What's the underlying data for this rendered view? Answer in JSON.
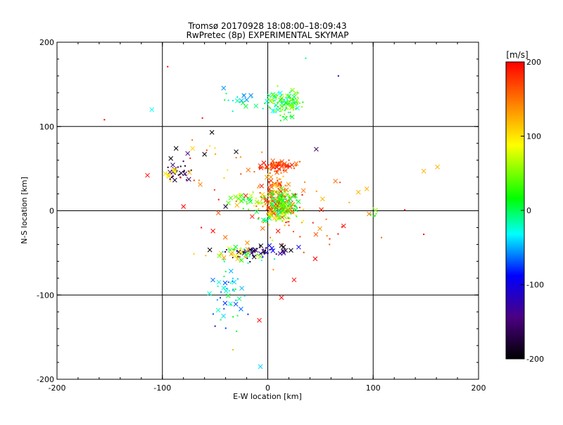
{
  "chart_data": {
    "type": "scatter",
    "title": "Tromsø 20170928 18:08:00–18:09:43",
    "subtitle": "RwPretec (8p) EXPERIMENTAL SKYMAP",
    "xlabel": "E-W location [km]",
    "ylabel": "N-S location [km]",
    "xlim": [
      -200,
      200
    ],
    "ylim": [
      -200,
      200
    ],
    "xticks": [
      -200,
      -100,
      0,
      100,
      200
    ],
    "yticks": [
      -200,
      -100,
      0,
      100,
      200
    ],
    "grid": true,
    "colorbar": {
      "label": "[m/s]",
      "min": -200,
      "max": 200,
      "ticks": [
        -200,
        -100,
        0,
        100,
        200
      ],
      "colors": [
        "#000000",
        "#4b0082",
        "#0000ff",
        "#00ffff",
        "#00ff00",
        "#ffff00",
        "#ff8000",
        "#ff0000"
      ]
    },
    "clusters": [
      {
        "name": "north-top",
        "cx": 15,
        "cy": 128,
        "sx": 9,
        "sy": 8,
        "n": 120,
        "vmin": -40,
        "vmax": 80
      },
      {
        "name": "north-left",
        "cx": -25,
        "cy": 132,
        "sx": 8,
        "sy": 6,
        "n": 18,
        "vmin": -60,
        "vmax": 20
      },
      {
        "name": "upper-red-band",
        "cx": 12,
        "cy": 53,
        "sx": 9,
        "sy": 3,
        "n": 70,
        "vmin": 150,
        "vmax": 200
      },
      {
        "name": "mid-column-red",
        "cx": 5,
        "cy": 22,
        "sx": 6,
        "sy": 12,
        "n": 90,
        "vmin": 100,
        "vmax": 200
      },
      {
        "name": "center-mixed",
        "cx": 10,
        "cy": 5,
        "sx": 10,
        "sy": 10,
        "n": 200,
        "vmin": -20,
        "vmax": 200
      },
      {
        "name": "center-green",
        "cx": 15,
        "cy": 10,
        "sx": 6,
        "sy": 7,
        "n": 60,
        "vmin": -10,
        "vmax": 60
      },
      {
        "name": "lower-left-green",
        "cx": -25,
        "cy": 15,
        "sx": 8,
        "sy": 6,
        "n": 30,
        "vmin": 0,
        "vmax": 120
      },
      {
        "name": "left-black",
        "cx": -85,
        "cy": 45,
        "sx": 6,
        "sy": 6,
        "n": 30,
        "vmin": -200,
        "vmax": -150
      },
      {
        "name": "left-yellow",
        "cx": -90,
        "cy": 44,
        "sx": 4,
        "sy": 4,
        "n": 10,
        "vmin": 80,
        "vmax": 130
      },
      {
        "name": "south-dark",
        "cx": -10,
        "cy": -48,
        "sx": 15,
        "sy": 4,
        "n": 60,
        "vmin": -200,
        "vmax": -90
      },
      {
        "name": "south-mixed",
        "cx": -25,
        "cy": -52,
        "sx": 12,
        "sy": 5,
        "n": 40,
        "vmin": -40,
        "vmax": 140
      },
      {
        "name": "south-cyan-trail",
        "cx": -38,
        "cy": -100,
        "sx": 8,
        "sy": 18,
        "n": 45,
        "vmin": -80,
        "vmax": 20
      },
      {
        "name": "right-small",
        "cx": 101,
        "cy": -5,
        "sx": 1.5,
        "sy": 3,
        "n": 6,
        "vmin": 0,
        "vmax": 60
      },
      {
        "name": "scatter-right",
        "cx": 40,
        "cy": -10,
        "sx": 25,
        "sy": 30,
        "n": 30,
        "vmin": 120,
        "vmax": 200
      },
      {
        "name": "scatter-left",
        "cx": -40,
        "cy": 40,
        "sx": 30,
        "sy": 30,
        "n": 30,
        "vmin": 100,
        "vmax": 200
      }
    ],
    "points": [
      {
        "x": -155,
        "y": 108,
        "v": 200,
        "m": "dot"
      },
      {
        "x": -95,
        "y": 171,
        "v": 200,
        "m": "dot"
      },
      {
        "x": -110,
        "y": 120,
        "v": -30,
        "m": "x"
      },
      {
        "x": -53,
        "y": 93,
        "v": -200,
        "m": "x"
      },
      {
        "x": -62,
        "y": 110,
        "v": 200,
        "m": "dot"
      },
      {
        "x": 148,
        "y": 47,
        "v": 120,
        "m": "x"
      },
      {
        "x": 161,
        "y": 52,
        "v": 120,
        "m": "x"
      },
      {
        "x": 86,
        "y": 22,
        "v": 120,
        "m": "x"
      },
      {
        "x": 94,
        "y": 26,
        "v": 120,
        "m": "x"
      },
      {
        "x": 52,
        "y": 14,
        "v": 120,
        "m": "x"
      },
      {
        "x": 72,
        "y": -18,
        "v": 200,
        "m": "x"
      },
      {
        "x": 148,
        "y": -28,
        "v": 200,
        "m": "dot"
      },
      {
        "x": 130,
        "y": 1,
        "v": 200,
        "m": "dot"
      },
      {
        "x": 67,
        "y": 160,
        "v": -120,
        "m": "dot"
      },
      {
        "x": 36,
        "y": 181,
        "v": -10,
        "m": "dot"
      },
      {
        "x": 46,
        "y": 73,
        "v": -160,
        "m": "x"
      },
      {
        "x": -80,
        "y": 5,
        "v": 200,
        "m": "x"
      },
      {
        "x": -63,
        "y": -20,
        "v": 200,
        "m": "dot"
      },
      {
        "x": -52,
        "y": -24,
        "v": 200,
        "m": "x"
      },
      {
        "x": -8,
        "y": -130,
        "v": 200,
        "m": "x"
      },
      {
        "x": 13,
        "y": -103,
        "v": 200,
        "m": "x"
      },
      {
        "x": 25,
        "y": -82,
        "v": 200,
        "m": "x"
      },
      {
        "x": 45,
        "y": -57,
        "v": 200,
        "m": "x"
      },
      {
        "x": -7,
        "y": -185,
        "v": -40,
        "m": "x"
      },
      {
        "x": -33,
        "y": -165,
        "v": 120,
        "m": "dot"
      },
      {
        "x": -50,
        "y": -137,
        "v": -120,
        "m": "dot"
      },
      {
        "x": -47,
        "y": -118,
        "v": -20,
        "m": "x"
      },
      {
        "x": -42,
        "y": -125,
        "v": -40,
        "m": "x"
      },
      {
        "x": 22,
        "y": -47,
        "v": -200,
        "m": "x"
      },
      {
        "x": 15,
        "y": -43,
        "v": -200,
        "m": "x"
      },
      {
        "x": -30,
        "y": 70,
        "v": -200,
        "m": "x"
      },
      {
        "x": -60,
        "y": 67,
        "v": -200,
        "m": "x"
      },
      {
        "x": -87,
        "y": 74,
        "v": -200,
        "m": "x"
      },
      {
        "x": -76,
        "y": 68,
        "v": -150,
        "m": "x"
      },
      {
        "x": -92,
        "y": 62,
        "v": -200,
        "m": "x"
      },
      {
        "x": -40,
        "y": 5,
        "v": -180,
        "m": "x"
      }
    ]
  }
}
